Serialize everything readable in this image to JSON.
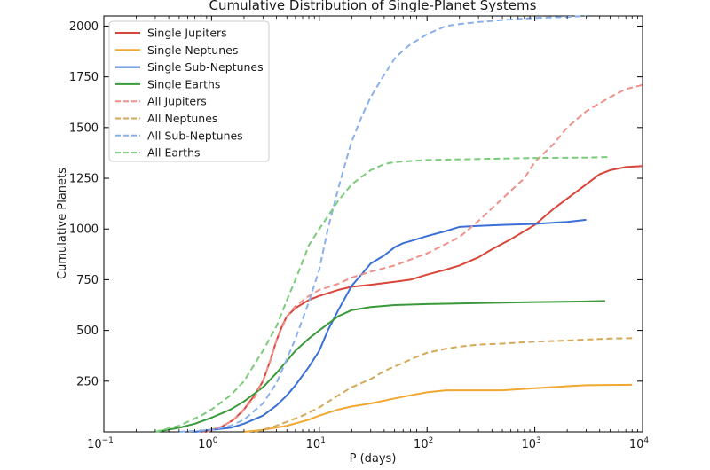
{
  "chart_data": {
    "type": "line",
    "title": "Cumulative Distribution of Single-Planet Systems",
    "xlabel": "P (days)",
    "ylabel": "Cumulative Planets",
    "xscale": "log",
    "xlim": [
      0.1,
      10000
    ],
    "ylim": [
      0,
      2050
    ],
    "x_ticks": [
      {
        "base": "10",
        "exp": "−1",
        "value": 0.1
      },
      {
        "base": "10",
        "exp": "0",
        "value": 1
      },
      {
        "base": "10",
        "exp": "1",
        "value": 10
      },
      {
        "base": "10",
        "exp": "2",
        "value": 100
      },
      {
        "base": "10",
        "exp": "3",
        "value": 1000
      },
      {
        "base": "10",
        "exp": "4",
        "value": 10000
      }
    ],
    "y_ticks": [
      250,
      500,
      750,
      1000,
      1250,
      1500,
      1750,
      2000
    ],
    "grid": false,
    "legend_position": "top-left",
    "series": [
      {
        "name": "Single Jupiters",
        "color": "#d9453a",
        "dash": "solid",
        "points": [
          [
            0.8,
            0
          ],
          [
            1.2,
            20
          ],
          [
            1.6,
            60
          ],
          [
            2,
            110
          ],
          [
            2.5,
            180
          ],
          [
            3,
            250
          ],
          [
            3.5,
            350
          ],
          [
            4,
            450
          ],
          [
            4.5,
            520
          ],
          [
            5,
            570
          ],
          [
            6,
            610
          ],
          [
            8,
            650
          ],
          [
            10,
            670
          ],
          [
            15,
            700
          ],
          [
            20,
            715
          ],
          [
            30,
            725
          ],
          [
            50,
            740
          ],
          [
            70,
            750
          ],
          [
            100,
            775
          ],
          [
            150,
            800
          ],
          [
            200,
            820
          ],
          [
            300,
            860
          ],
          [
            400,
            900
          ],
          [
            600,
            950
          ],
          [
            1000,
            1020
          ],
          [
            1500,
            1100
          ],
          [
            2000,
            1150
          ],
          [
            3000,
            1220
          ],
          [
            4000,
            1270
          ],
          [
            5000,
            1290
          ],
          [
            7000,
            1305
          ],
          [
            10000,
            1310
          ]
        ]
      },
      {
        "name": "Single Neptunes",
        "color": "#f0a830",
        "dash": "solid",
        "points": [
          [
            2,
            0
          ],
          [
            3,
            10
          ],
          [
            5,
            30
          ],
          [
            8,
            60
          ],
          [
            10,
            80
          ],
          [
            15,
            110
          ],
          [
            20,
            125
          ],
          [
            30,
            140
          ],
          [
            50,
            165
          ],
          [
            70,
            180
          ],
          [
            100,
            195
          ],
          [
            150,
            205
          ],
          [
            200,
            205
          ],
          [
            500,
            205
          ],
          [
            1000,
            215
          ],
          [
            2000,
            225
          ],
          [
            3000,
            230
          ],
          [
            8000,
            232
          ]
        ]
      },
      {
        "name": "Single Sub-Neptunes",
        "color": "#3a6fd8",
        "dash": "solid",
        "points": [
          [
            0.7,
            0
          ],
          [
            1,
            10
          ],
          [
            1.5,
            20
          ],
          [
            2,
            40
          ],
          [
            3,
            80
          ],
          [
            4,
            130
          ],
          [
            5,
            180
          ],
          [
            6,
            230
          ],
          [
            8,
            320
          ],
          [
            10,
            400
          ],
          [
            12,
            500
          ],
          [
            15,
            600
          ],
          [
            20,
            720
          ],
          [
            25,
            780
          ],
          [
            30,
            830
          ],
          [
            40,
            870
          ],
          [
            50,
            910
          ],
          [
            60,
            930
          ],
          [
            70,
            940
          ],
          [
            100,
            965
          ],
          [
            150,
            990
          ],
          [
            200,
            1010
          ],
          [
            300,
            1015
          ],
          [
            500,
            1020
          ],
          [
            1000,
            1025
          ],
          [
            2000,
            1035
          ],
          [
            3000,
            1045
          ]
        ]
      },
      {
        "name": "Single Earths",
        "color": "#3a9a3a",
        "dash": "solid",
        "points": [
          [
            0.3,
            0
          ],
          [
            0.5,
            20
          ],
          [
            0.7,
            40
          ],
          [
            1,
            70
          ],
          [
            1.5,
            110
          ],
          [
            2,
            150
          ],
          [
            3,
            220
          ],
          [
            4,
            290
          ],
          [
            5,
            350
          ],
          [
            6,
            400
          ],
          [
            8,
            460
          ],
          [
            10,
            500
          ],
          [
            15,
            570
          ],
          [
            20,
            600
          ],
          [
            30,
            615
          ],
          [
            50,
            625
          ],
          [
            100,
            630
          ],
          [
            300,
            635
          ],
          [
            1000,
            640
          ],
          [
            3000,
            643
          ],
          [
            4500,
            645
          ]
        ]
      },
      {
        "name": "All Jupiters",
        "color": "#f0908a",
        "dash": "dashed",
        "points": [
          [
            0.9,
            0
          ],
          [
            1.3,
            30
          ],
          [
            1.8,
            80
          ],
          [
            2.5,
            170
          ],
          [
            3,
            250
          ],
          [
            3.5,
            350
          ],
          [
            4,
            450
          ],
          [
            5,
            570
          ],
          [
            6,
            620
          ],
          [
            8,
            670
          ],
          [
            10,
            700
          ],
          [
            15,
            730
          ],
          [
            20,
            760
          ],
          [
            30,
            790
          ],
          [
            50,
            820
          ],
          [
            100,
            880
          ],
          [
            200,
            960
          ],
          [
            300,
            1040
          ],
          [
            500,
            1150
          ],
          [
            800,
            1250
          ],
          [
            1000,
            1330
          ],
          [
            1500,
            1420
          ],
          [
            2000,
            1500
          ],
          [
            3000,
            1580
          ],
          [
            5000,
            1650
          ],
          [
            7000,
            1690
          ],
          [
            10000,
            1710
          ]
        ]
      },
      {
        "name": "All Neptunes",
        "color": "#d4aa5a",
        "dash": "dashed",
        "points": [
          [
            2.5,
            0
          ],
          [
            3,
            10
          ],
          [
            4,
            30
          ],
          [
            5,
            50
          ],
          [
            7,
            80
          ],
          [
            10,
            120
          ],
          [
            15,
            180
          ],
          [
            20,
            220
          ],
          [
            30,
            260
          ],
          [
            40,
            300
          ],
          [
            60,
            340
          ],
          [
            80,
            370
          ],
          [
            100,
            390
          ],
          [
            150,
            410
          ],
          [
            200,
            420
          ],
          [
            300,
            430
          ],
          [
            500,
            435
          ],
          [
            1000,
            445
          ],
          [
            2000,
            450
          ],
          [
            3000,
            455
          ],
          [
            5000,
            460
          ],
          [
            8000,
            462
          ]
        ]
      },
      {
        "name": "All Sub-Neptunes",
        "color": "#8ab0ec",
        "dash": "dashed",
        "points": [
          [
            0.5,
            0
          ],
          [
            1,
            10
          ],
          [
            1.5,
            30
          ],
          [
            2,
            60
          ],
          [
            3,
            140
          ],
          [
            4,
            240
          ],
          [
            5,
            360
          ],
          [
            6,
            460
          ],
          [
            8,
            640
          ],
          [
            10,
            800
          ],
          [
            12,
            1000
          ],
          [
            15,
            1200
          ],
          [
            18,
            1350
          ],
          [
            20,
            1430
          ],
          [
            25,
            1560
          ],
          [
            30,
            1650
          ],
          [
            40,
            1760
          ],
          [
            50,
            1840
          ],
          [
            60,
            1880
          ],
          [
            70,
            1910
          ],
          [
            100,
            1960
          ],
          [
            150,
            2000
          ],
          [
            200,
            2010
          ],
          [
            300,
            2020
          ],
          [
            500,
            2030
          ],
          [
            1000,
            2040
          ],
          [
            2000,
            2045
          ],
          [
            3000,
            2050
          ]
        ]
      },
      {
        "name": "All Earths",
        "color": "#7acc7a",
        "dash": "dashed",
        "points": [
          [
            0.3,
            0
          ],
          [
            0.5,
            30
          ],
          [
            0.8,
            80
          ],
          [
            1,
            110
          ],
          [
            1.5,
            180
          ],
          [
            2,
            250
          ],
          [
            3,
            400
          ],
          [
            4,
            520
          ],
          [
            5,
            650
          ],
          [
            6,
            750
          ],
          [
            7,
            840
          ],
          [
            8,
            920
          ],
          [
            10,
            1000
          ],
          [
            15,
            1140
          ],
          [
            20,
            1220
          ],
          [
            30,
            1290
          ],
          [
            40,
            1320
          ],
          [
            50,
            1330
          ],
          [
            100,
            1340
          ],
          [
            300,
            1345
          ],
          [
            1000,
            1350
          ],
          [
            3000,
            1352
          ],
          [
            5000,
            1355
          ]
        ]
      }
    ]
  }
}
